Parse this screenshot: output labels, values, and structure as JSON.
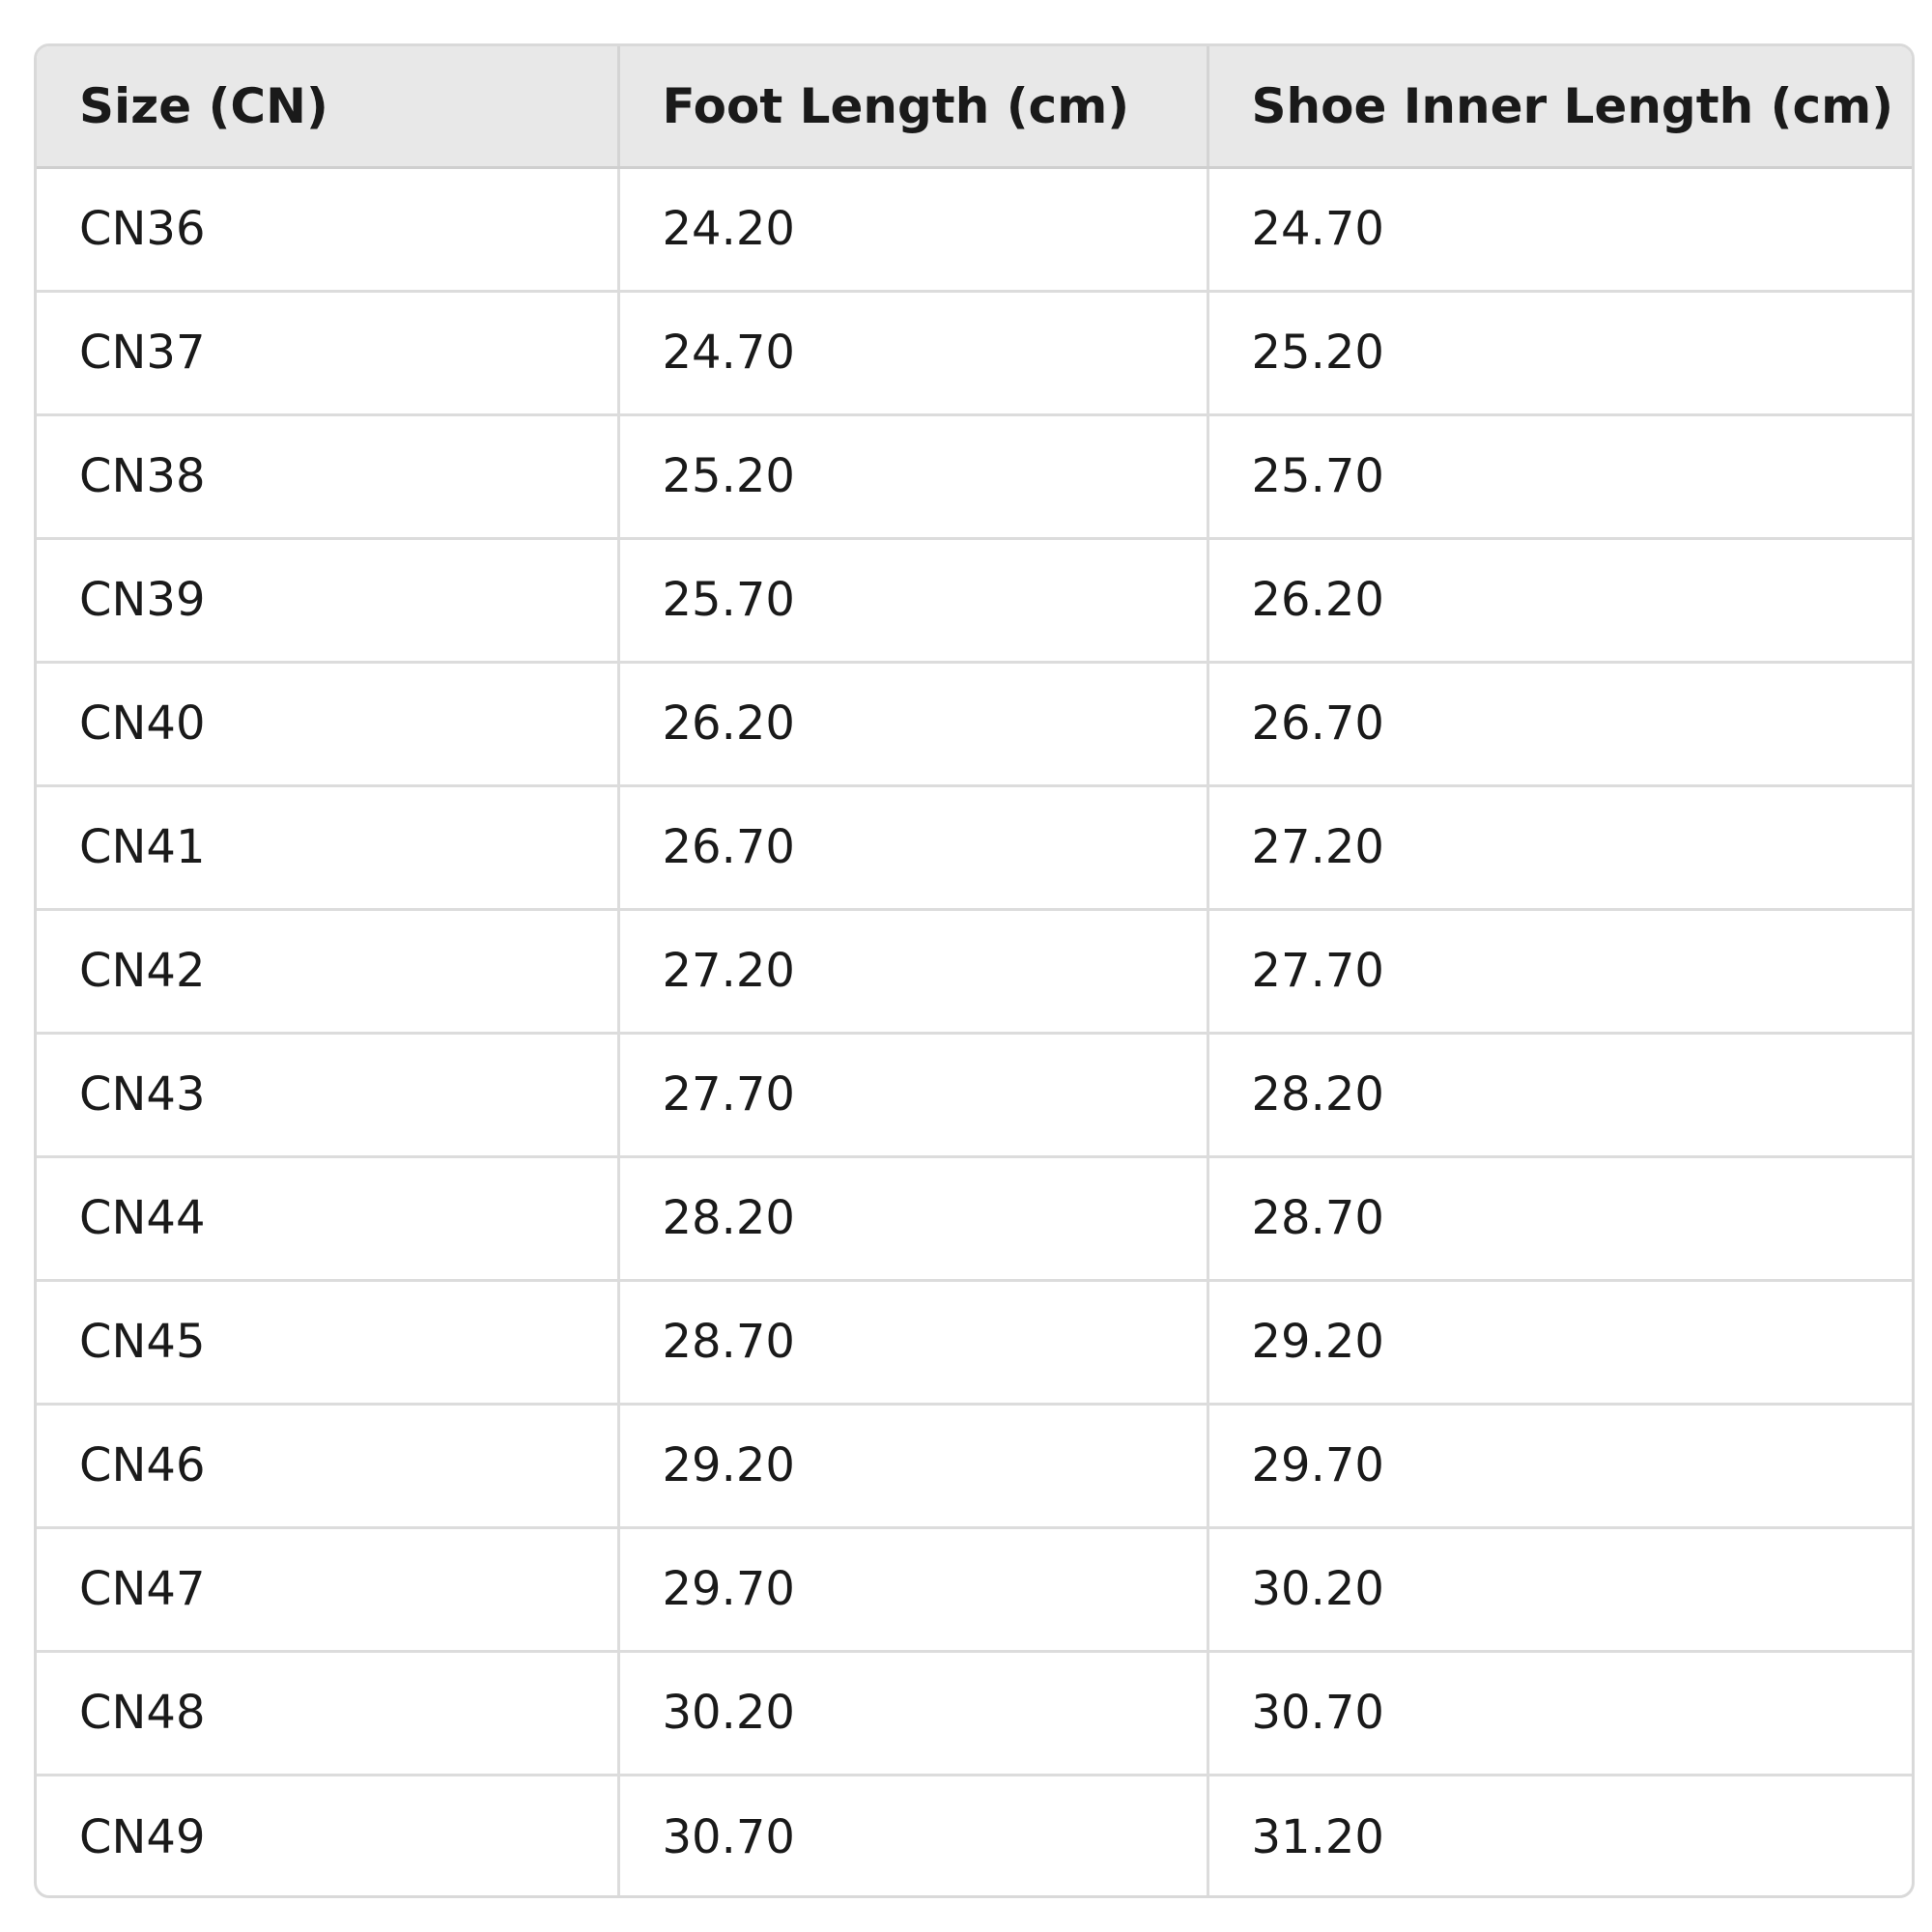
{
  "table": {
    "headers": [
      "Size (CN)",
      "Foot Length (cm)",
      "Shoe Inner Length (cm)"
    ],
    "rows": [
      [
        "CN36",
        "24.20",
        "24.70"
      ],
      [
        "CN37",
        "24.70",
        "25.20"
      ],
      [
        "CN38",
        "25.20",
        "25.70"
      ],
      [
        "CN39",
        "25.70",
        "26.20"
      ],
      [
        "CN40",
        "26.20",
        "26.70"
      ],
      [
        "CN41",
        "26.70",
        "27.20"
      ],
      [
        "CN42",
        "27.20",
        "27.70"
      ],
      [
        "CN43",
        "27.70",
        "28.20"
      ],
      [
        "CN44",
        "28.20",
        "28.70"
      ],
      [
        "CN45",
        "28.70",
        "29.20"
      ],
      [
        "CN46",
        "29.20",
        "29.70"
      ],
      [
        "CN47",
        "29.70",
        "30.20"
      ],
      [
        "CN48",
        "30.20",
        "30.70"
      ],
      [
        "CN49",
        "30.70",
        "31.20"
      ]
    ]
  }
}
